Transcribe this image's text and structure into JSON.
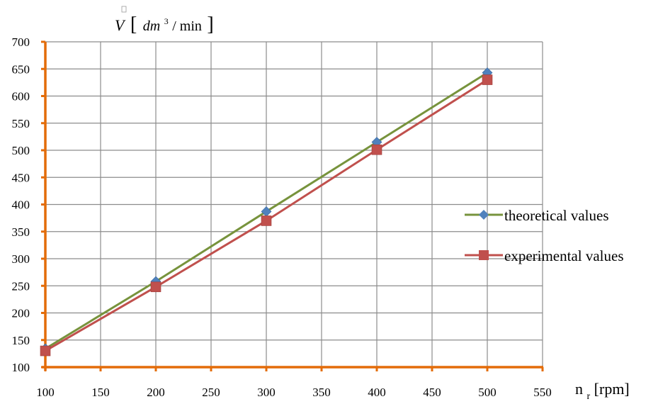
{
  "chart_data": {
    "type": "line",
    "x": [
      100,
      200,
      300,
      400,
      500
    ],
    "series": [
      {
        "name": "theoretical values",
        "values": [
          134,
          258,
          387,
          515,
          643
        ],
        "line_color": "#77933c",
        "marker": "diamond",
        "marker_color": "#4f81bd"
      },
      {
        "name": "experimental values",
        "values": [
          130,
          248,
          370,
          501,
          630
        ],
        "line_color": "#c0504d",
        "marker": "square",
        "marker_color": "#c0504d"
      }
    ],
    "xlim": [
      100,
      550
    ],
    "ylim": [
      100,
      700
    ],
    "xticks": [
      100,
      150,
      200,
      250,
      300,
      350,
      400,
      450,
      500,
      550
    ],
    "yticks": [
      100,
      150,
      200,
      250,
      300,
      350,
      400,
      450,
      500,
      550,
      600,
      650,
      700
    ],
    "xlabel": {
      "main": "n",
      "sub": "r",
      "unit": " [rpm]"
    },
    "ylabel": {
      "var": "V",
      "open": "[",
      "unit": "dm",
      "sup": "3",
      "rest": " / min",
      "close": "]"
    },
    "grid": true,
    "legend_position": "right",
    "axis_color": "#e36c09",
    "grid_color": "#8c8c8c"
  }
}
